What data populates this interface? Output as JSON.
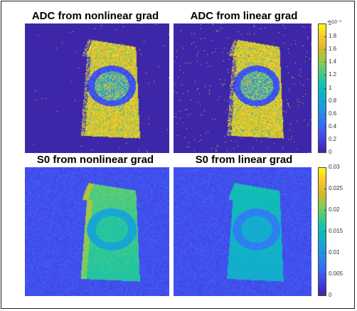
{
  "figure": {
    "panels": [
      {
        "title": "ADC from nonlinear grad",
        "kind": "adc",
        "noise": "low"
      },
      {
        "title": "ADC from linear grad",
        "kind": "adc",
        "noise": "high"
      },
      {
        "title": "S0 from nonlinear grad",
        "kind": "s0",
        "variant": "nonlinear"
      },
      {
        "title": "S0 from linear grad",
        "kind": "s0",
        "variant": "linear"
      }
    ],
    "colorbars": [
      {
        "exponent_label": "× 10⁻³",
        "range": [
          0,
          2
        ],
        "ticks": [
          "2",
          "1.8",
          "1.6",
          "1.4",
          "1.2",
          "1",
          "0.8",
          "0.6",
          "0.4",
          "0.2",
          "0"
        ],
        "tick_values": [
          2,
          1.8,
          1.6,
          1.4,
          1.2,
          1,
          0.8,
          0.6,
          0.4,
          0.2,
          0
        ]
      },
      {
        "exponent_label": "",
        "range": [
          0,
          0.03
        ],
        "ticks": [
          "0.03",
          "0.025",
          "0.02",
          "0.015",
          "0.01",
          "0.005",
          "0"
        ],
        "tick_values": [
          0.03,
          0.025,
          0.02,
          0.015,
          0.01,
          0.005,
          0
        ]
      }
    ],
    "colormap": "parula",
    "colors": {
      "background_adc": "#3e26a8",
      "background_s0": "#2f44d6",
      "high": "#f9fb0e",
      "frame": "#222222"
    }
  }
}
